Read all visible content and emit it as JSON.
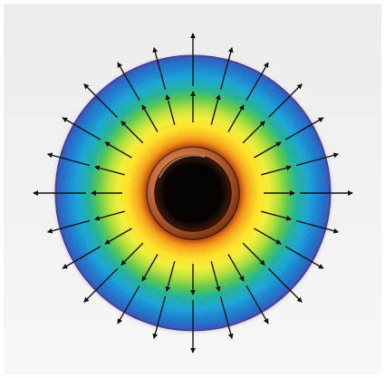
{
  "figure": {
    "icon": "radial-heat-flux-icon",
    "colors": {
      "background_top": "#ececec",
      "background_bottom": "#f7f7f7",
      "disk_edge": "#4a3f9a",
      "gradient": [
        "#8a0e0a",
        "#d23a10",
        "#f07a16",
        "#f6b820",
        "#ffe22a",
        "#f2ee3a",
        "#b7e03c",
        "#5ec850",
        "#22b39a",
        "#1ea6d6",
        "#1f7fd0",
        "#3258b8"
      ],
      "tube_outer": "#7a3210",
      "tube_mid": "#c8703a",
      "tube_highlight": "#f3b890",
      "hole": "#060303",
      "arrow": "#111111"
    },
    "arrows": {
      "directions": 24,
      "long_ring_count": 16,
      "inner_ring_count": 24
    }
  }
}
